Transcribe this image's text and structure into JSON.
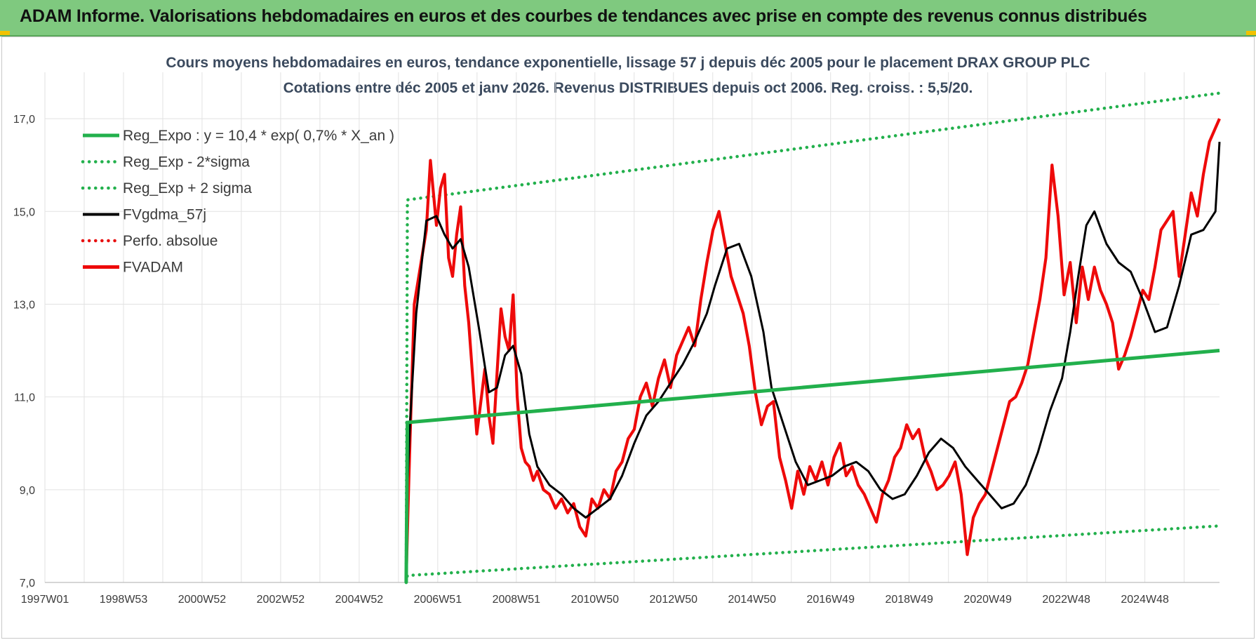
{
  "banner": {
    "title": "ADAM Informe. Valorisations hebdomadaires en euros et des courbes de tendances avec prise en compte des revenus connus distribués"
  },
  "colors": {
    "banner_bg": "#7fc97f",
    "reg_expo": "#22b04c",
    "sigma": "#22b04c",
    "fvgdma": "#000000",
    "perfo": "#e81010",
    "fvadam": "#ee0a0a",
    "grid": "#e2e2e2"
  },
  "chart_data": {
    "type": "line",
    "title_lines": [
      "Cours moyens hebdomadaires en euros, tendance exponentielle, lissage 57 j depuis déc 2005 pour le placement DRAX GROUP PLC",
      "Cotations entre déc 2005 et janv 2026.  Revenus DISTRIBUES depuis oct 2006. Reg. croiss. : 5,5/20."
    ],
    "x_tick_labels": [
      "1997W01",
      "1998W53",
      "2000W52",
      "2002W52",
      "2004W52",
      "2006W51",
      "2008W51",
      "2010W50",
      "2012W50",
      "2014W50",
      "2016W49",
      "2018W49",
      "2020W49",
      "2022W48",
      "2024W48"
    ],
    "x_range": [
      1997.0,
      2026.1
    ],
    "y_tick_labels": [
      "7,0",
      "9,0",
      "11,0",
      "13,0",
      "15,0",
      "17,0"
    ],
    "ylim": [
      7.0,
      18.0
    ],
    "grid": true,
    "legend_position": "top-left",
    "legend": [
      {
        "label": "Reg_Expo : y = 10,4 * exp( 0,7% *  X_an )",
        "style": "solid-thick",
        "color": "#22b04c"
      },
      {
        "label": "Reg_Exp - 2*sigma",
        "style": "dotted",
        "color": "#22b04c"
      },
      {
        "label": "Reg_Exp + 2 sigma",
        "style": "dotted",
        "color": "#22b04c"
      },
      {
        "label": "FVgdma_57j",
        "style": "solid",
        "color": "#000000"
      },
      {
        "label": "Perfo. absolue",
        "style": "dotted",
        "color": "#e81010"
      },
      {
        "label": "FVADAM",
        "style": "solid-thick",
        "color": "#ee0a0a"
      }
    ],
    "series": [
      {
        "name": "Reg_Expo : y = 10,4 * exp( 0,7% *  X_an )",
        "x": [
          2005.95,
          2005.98,
          2026.1
        ],
        "y": [
          7.0,
          10.45,
          12.0
        ]
      },
      {
        "name": "Reg_Exp - 2*sigma",
        "x": [
          2005.95,
          2005.98,
          2026.1
        ],
        "y": [
          7.0,
          7.15,
          8.22
        ]
      },
      {
        "name": "Reg_Exp + 2 sigma",
        "x": [
          2005.95,
          2005.98,
          2026.1
        ],
        "y": [
          7.0,
          15.25,
          17.55
        ]
      },
      {
        "name": "FVgdma_57j",
        "x": [
          2005.95,
          2006.05,
          2006.2,
          2006.45,
          2006.7,
          2006.9,
          2007.1,
          2007.3,
          2007.5,
          2007.75,
          2008.0,
          2008.2,
          2008.4,
          2008.6,
          2008.8,
          2009.0,
          2009.2,
          2009.5,
          2009.8,
          2010.1,
          2010.4,
          2010.7,
          2011.0,
          2011.3,
          2011.6,
          2011.9,
          2012.2,
          2012.5,
          2012.8,
          2013.1,
          2013.4,
          2013.6,
          2013.9,
          2014.2,
          2014.5,
          2014.8,
          2015.0,
          2015.3,
          2015.6,
          2015.9,
          2016.2,
          2016.5,
          2016.8,
          2017.1,
          2017.4,
          2017.7,
          2018.0,
          2018.3,
          2018.6,
          2018.9,
          2019.2,
          2019.5,
          2019.8,
          2020.1,
          2020.4,
          2020.7,
          2021.0,
          2021.3,
          2021.6,
          2021.9,
          2022.2,
          2022.4,
          2022.6,
          2022.8,
          2023.0,
          2023.3,
          2023.6,
          2023.9,
          2024.2,
          2024.5,
          2024.8,
          2025.1,
          2025.4,
          2025.7,
          2026.0,
          2026.1
        ],
        "y": [
          8.5,
          10.5,
          12.8,
          14.8,
          14.9,
          14.5,
          14.2,
          14.4,
          13.8,
          12.5,
          11.1,
          11.2,
          11.9,
          12.1,
          11.5,
          10.2,
          9.5,
          9.1,
          8.9,
          8.6,
          8.4,
          8.6,
          8.8,
          9.3,
          10.0,
          10.6,
          10.9,
          11.3,
          11.7,
          12.2,
          12.8,
          13.4,
          14.2,
          14.3,
          13.6,
          12.4,
          11.2,
          10.4,
          9.6,
          9.1,
          9.2,
          9.3,
          9.5,
          9.6,
          9.4,
          9.0,
          8.8,
          8.9,
          9.3,
          9.8,
          10.1,
          9.9,
          9.5,
          9.2,
          8.9,
          8.6,
          8.7,
          9.1,
          9.8,
          10.7,
          11.4,
          12.4,
          13.6,
          14.7,
          15.0,
          14.3,
          13.9,
          13.7,
          13.1,
          12.4,
          12.5,
          13.4,
          14.5,
          14.6,
          15.0,
          16.5
        ]
      },
      {
        "name": "FVADAM",
        "x": [
          2005.95,
          2006.0,
          2006.05,
          2006.15,
          2006.3,
          2006.45,
          2006.55,
          2006.7,
          2006.8,
          2006.9,
          2007.0,
          2007.1,
          2007.2,
          2007.3,
          2007.4,
          2007.5,
          2007.6,
          2007.7,
          2007.8,
          2007.9,
          2008.0,
          2008.1,
          2008.2,
          2008.3,
          2008.4,
          2008.5,
          2008.6,
          2008.7,
          2008.8,
          2008.9,
          2009.0,
          2009.1,
          2009.2,
          2009.35,
          2009.5,
          2009.65,
          2009.8,
          2009.95,
          2010.1,
          2010.25,
          2010.4,
          2010.55,
          2010.7,
          2010.85,
          2011.0,
          2011.15,
          2011.3,
          2011.45,
          2011.6,
          2011.75,
          2011.9,
          2012.05,
          2012.2,
          2012.35,
          2012.5,
          2012.65,
          2012.8,
          2012.95,
          2013.1,
          2013.25,
          2013.4,
          2013.55,
          2013.7,
          2013.85,
          2014.0,
          2014.15,
          2014.3,
          2014.45,
          2014.6,
          2014.75,
          2014.9,
          2015.05,
          2015.2,
          2015.35,
          2015.5,
          2015.65,
          2015.8,
          2015.95,
          2016.1,
          2016.25,
          2016.4,
          2016.55,
          2016.7,
          2016.85,
          2017.0,
          2017.15,
          2017.3,
          2017.45,
          2017.6,
          2017.75,
          2017.9,
          2018.05,
          2018.2,
          2018.35,
          2018.5,
          2018.65,
          2018.8,
          2018.95,
          2019.1,
          2019.25,
          2019.4,
          2019.55,
          2019.7,
          2019.85,
          2020.0,
          2020.15,
          2020.3,
          2020.45,
          2020.6,
          2020.75,
          2020.9,
          2021.05,
          2021.2,
          2021.35,
          2021.5,
          2021.65,
          2021.8,
          2021.95,
          2022.1,
          2022.25,
          2022.4,
          2022.55,
          2022.7,
          2022.85,
          2023.0,
          2023.15,
          2023.3,
          2023.45,
          2023.6,
          2023.75,
          2023.9,
          2024.05,
          2024.2,
          2024.35,
          2024.5,
          2024.65,
          2024.8,
          2024.95,
          2025.1,
          2025.25,
          2025.4,
          2025.55,
          2025.7,
          2025.85,
          2026.0,
          2026.1
        ],
        "y": [
          7.1,
          8.7,
          10.2,
          13.0,
          13.8,
          14.6,
          16.1,
          14.7,
          15.5,
          15.8,
          14.0,
          13.6,
          14.5,
          15.1,
          13.4,
          12.6,
          11.4,
          10.2,
          10.9,
          11.6,
          10.6,
          10.0,
          11.5,
          12.9,
          12.3,
          12.0,
          13.2,
          11.0,
          9.9,
          9.6,
          9.5,
          9.2,
          9.4,
          9.0,
          8.9,
          8.6,
          8.8,
          8.5,
          8.7,
          8.2,
          8.0,
          8.8,
          8.6,
          9.0,
          8.8,
          9.4,
          9.6,
          10.1,
          10.3,
          11.0,
          11.3,
          10.8,
          11.4,
          11.8,
          11.2,
          11.9,
          12.2,
          12.5,
          12.1,
          13.1,
          13.9,
          14.6,
          15.0,
          14.3,
          13.6,
          13.2,
          12.8,
          12.1,
          11.1,
          10.4,
          10.8,
          10.9,
          9.7,
          9.2,
          8.6,
          9.4,
          8.9,
          9.5,
          9.2,
          9.6,
          9.1,
          9.7,
          10.0,
          9.3,
          9.5,
          9.1,
          8.9,
          8.6,
          8.3,
          8.9,
          9.2,
          9.7,
          9.9,
          10.4,
          10.1,
          10.3,
          9.7,
          9.4,
          9.0,
          9.1,
          9.3,
          9.6,
          8.9,
          7.6,
          8.4,
          8.7,
          8.9,
          9.4,
          9.9,
          10.4,
          10.9,
          11.0,
          11.3,
          11.7,
          12.4,
          13.1,
          14.0,
          16.0,
          14.9,
          13.2,
          13.9,
          12.6,
          13.8,
          13.1,
          13.8,
          13.3,
          13.0,
          12.6,
          11.6,
          11.9,
          12.3,
          12.8,
          13.3,
          13.1,
          13.8,
          14.6,
          14.8,
          15.0,
          13.6,
          14.5,
          15.4,
          14.9,
          15.8,
          16.5,
          16.8,
          17.0
        ]
      }
    ]
  }
}
